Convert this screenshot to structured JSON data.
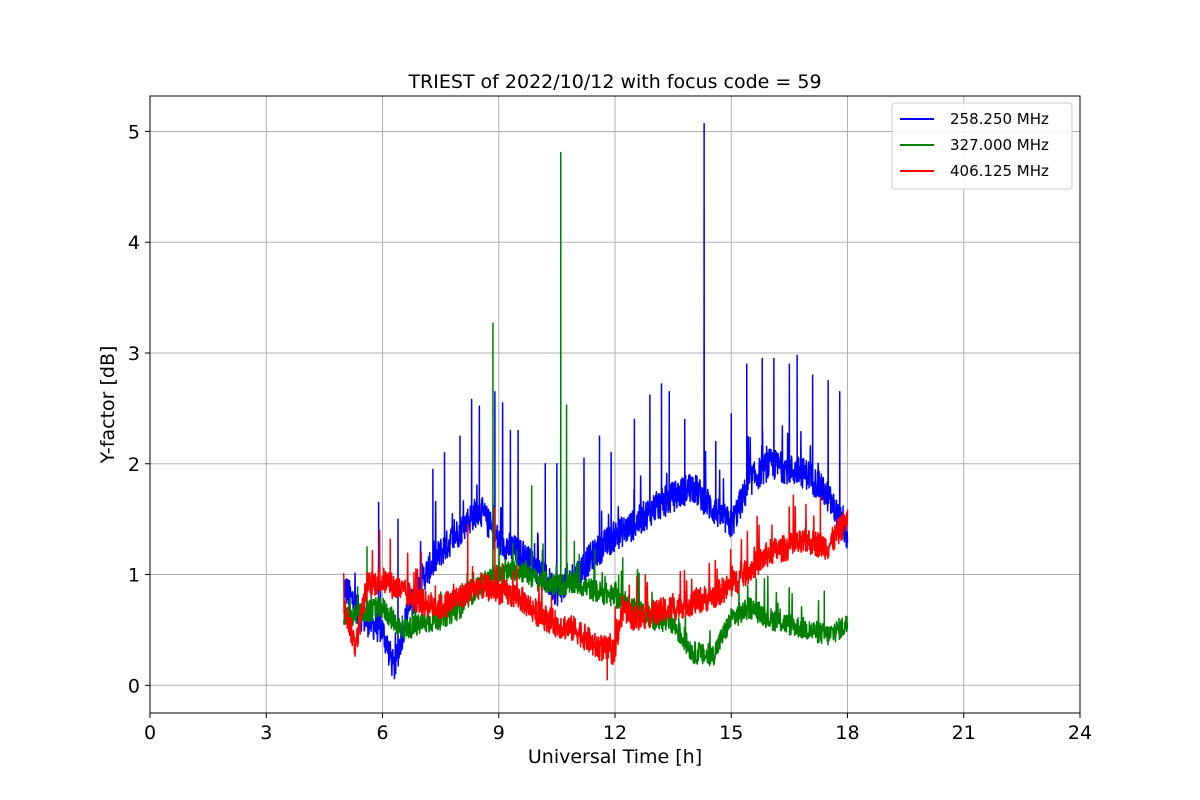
{
  "chart_data": {
    "type": "line",
    "title": "TRIEST of 2022/10/12 with focus code = 59",
    "xlabel": "Universal Time [h]",
    "ylabel": "Y-factor [dB]",
    "xlim": [
      0,
      24
    ],
    "ylim": [
      -0.25,
      5.32
    ],
    "xticks": [
      0,
      3,
      6,
      9,
      12,
      15,
      18,
      21,
      24
    ],
    "yticks": [
      0,
      1,
      2,
      3,
      4,
      5
    ],
    "grid": true,
    "legend_position": "top-right",
    "series": [
      {
        "name": "258.250 MHz",
        "color": "#0000ff",
        "baseline": [
          [
            5.0,
            0.9
          ],
          [
            5.5,
            0.6
          ],
          [
            6.0,
            0.5
          ],
          [
            6.3,
            0.15
          ],
          [
            6.6,
            0.6
          ],
          [
            7.0,
            0.95
          ],
          [
            7.5,
            1.2
          ],
          [
            8.0,
            1.4
          ],
          [
            8.5,
            1.6
          ],
          [
            9.0,
            1.3
          ],
          [
            9.5,
            1.2
          ],
          [
            10.0,
            1.05
          ],
          [
            10.5,
            0.85
          ],
          [
            11.0,
            1.0
          ],
          [
            11.5,
            1.2
          ],
          [
            12.0,
            1.35
          ],
          [
            12.5,
            1.45
          ],
          [
            13.0,
            1.6
          ],
          [
            13.5,
            1.7
          ],
          [
            14.0,
            1.8
          ],
          [
            14.5,
            1.6
          ],
          [
            15.0,
            1.45
          ],
          [
            15.5,
            1.85
          ],
          [
            16.0,
            2.0
          ],
          [
            16.5,
            1.95
          ],
          [
            17.0,
            1.9
          ],
          [
            17.5,
            1.7
          ],
          [
            18.0,
            1.35
          ]
        ],
        "spikes": [
          [
            5.9,
            1.65
          ],
          [
            6.4,
            1.5
          ],
          [
            7.3,
            1.95
          ],
          [
            7.6,
            2.1
          ],
          [
            8.0,
            2.25
          ],
          [
            8.3,
            2.58
          ],
          [
            8.5,
            2.52
          ],
          [
            8.9,
            2.65
          ],
          [
            9.1,
            2.55
          ],
          [
            9.3,
            2.3
          ],
          [
            9.5,
            2.3
          ],
          [
            10.2,
            2.0
          ],
          [
            10.5,
            2.0
          ],
          [
            11.2,
            2.05
          ],
          [
            11.6,
            2.25
          ],
          [
            11.9,
            2.1
          ],
          [
            12.5,
            2.4
          ],
          [
            12.9,
            2.62
          ],
          [
            13.2,
            2.72
          ],
          [
            13.4,
            2.65
          ],
          [
            13.8,
            2.4
          ],
          [
            14.3,
            5.07
          ],
          [
            14.6,
            2.2
          ],
          [
            15.0,
            2.45
          ],
          [
            15.4,
            2.9
          ],
          [
            15.8,
            2.95
          ],
          [
            16.1,
            2.95
          ],
          [
            16.5,
            2.9
          ],
          [
            16.7,
            2.98
          ],
          [
            17.1,
            2.8
          ],
          [
            17.5,
            2.75
          ],
          [
            17.8,
            2.65
          ]
        ],
        "noise": 0.14
      },
      {
        "name": "327.000 MHz",
        "color": "#008000",
        "baseline": [
          [
            5.0,
            0.6
          ],
          [
            5.5,
            0.65
          ],
          [
            6.0,
            0.7
          ],
          [
            6.5,
            0.5
          ],
          [
            7.0,
            0.55
          ],
          [
            7.5,
            0.6
          ],
          [
            8.0,
            0.7
          ],
          [
            8.5,
            0.9
          ],
          [
            9.0,
            1.0
          ],
          [
            9.5,
            1.05
          ],
          [
            10.0,
            0.95
          ],
          [
            10.5,
            0.9
          ],
          [
            11.0,
            0.92
          ],
          [
            11.5,
            0.85
          ],
          [
            12.0,
            0.8
          ],
          [
            12.5,
            0.7
          ],
          [
            13.0,
            0.6
          ],
          [
            13.5,
            0.55
          ],
          [
            14.0,
            0.3
          ],
          [
            14.5,
            0.25
          ],
          [
            15.0,
            0.6
          ],
          [
            15.5,
            0.7
          ],
          [
            16.0,
            0.6
          ],
          [
            16.5,
            0.55
          ],
          [
            17.0,
            0.5
          ],
          [
            17.5,
            0.45
          ],
          [
            18.0,
            0.55
          ]
        ],
        "spikes": [
          [
            5.6,
            1.25
          ],
          [
            8.85,
            3.27
          ],
          [
            9.85,
            1.8
          ],
          [
            10.6,
            4.81
          ],
          [
            10.75,
            2.53
          ],
          [
            10.95,
            1.3
          ],
          [
            12.2,
            1.15
          ],
          [
            15.2,
            0.95
          ],
          [
            17.4,
            0.85
          ]
        ],
        "noise": 0.1
      },
      {
        "name": "406.125 MHz",
        "color": "#ff0000",
        "baseline": [
          [
            5.0,
            0.75
          ],
          [
            5.3,
            0.35
          ],
          [
            5.6,
            0.9
          ],
          [
            6.0,
            0.95
          ],
          [
            6.5,
            0.85
          ],
          [
            7.0,
            0.75
          ],
          [
            7.5,
            0.7
          ],
          [
            8.0,
            0.8
          ],
          [
            8.5,
            0.9
          ],
          [
            9.0,
            0.85
          ],
          [
            9.5,
            0.8
          ],
          [
            10.0,
            0.65
          ],
          [
            10.5,
            0.55
          ],
          [
            11.0,
            0.5
          ],
          [
            11.5,
            0.35
          ],
          [
            12.0,
            0.3
          ],
          [
            12.2,
            0.7
          ],
          [
            12.5,
            0.6
          ],
          [
            13.0,
            0.65
          ],
          [
            13.5,
            0.7
          ],
          [
            14.0,
            0.75
          ],
          [
            14.5,
            0.8
          ],
          [
            15.0,
            0.9
          ],
          [
            15.5,
            1.05
          ],
          [
            16.0,
            1.2
          ],
          [
            16.5,
            1.25
          ],
          [
            17.0,
            1.3
          ],
          [
            17.5,
            1.25
          ],
          [
            18.0,
            1.5
          ]
        ],
        "spikes": [
          [
            6.2,
            1.32
          ],
          [
            7.0,
            1.2
          ],
          [
            8.2,
            1.45
          ],
          [
            8.9,
            1.6
          ],
          [
            11.8,
            0.05
          ],
          [
            17.3,
            1.7
          ]
        ],
        "noise": 0.12
      }
    ]
  }
}
